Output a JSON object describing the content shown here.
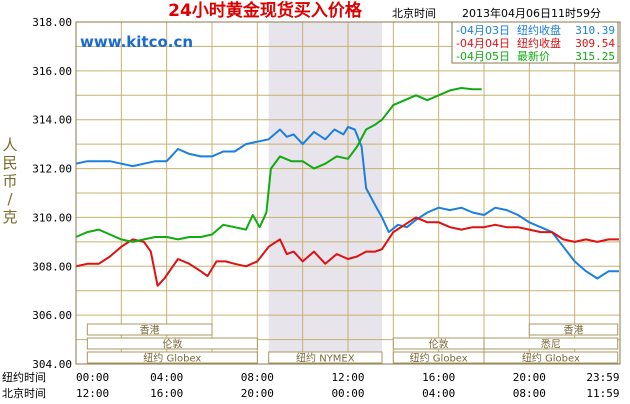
{
  "chart_data": {
    "type": "line",
    "title": "24小时黄金现货买入价格",
    "source": "www.kitco.cn",
    "timestamp_label": "北京时间",
    "timestamp": "2013年04月06日11时59分",
    "ylabel": "人民币/克",
    "ylim": [
      304.0,
      318.0
    ],
    "y_ticks": [
      "318.00",
      "316.00",
      "314.00",
      "312.00",
      "310.00",
      "308.00",
      "306.00",
      "304.00"
    ],
    "x_range_hours": [
      0,
      24
    ],
    "x_row1_label": "纽约时间",
    "x_row1_ticks": [
      "00:00",
      "04:00",
      "08:00",
      "12:00",
      "16:00",
      "20:00",
      "23:59"
    ],
    "x_row2_label": "北京时间",
    "x_row2_ticks": [
      "12:00",
      "16:00",
      "20:00",
      "00:00",
      "04:00",
      "08:00",
      "11:59"
    ],
    "highlight_hours": [
      8.5,
      13.5
    ],
    "grid": true,
    "legend_position": "top-right",
    "legend": [
      {
        "date": "04月03日",
        "label": "纽约收盘",
        "value": "310.39",
        "color": "#1a7fe0"
      },
      {
        "date": "04月04日",
        "label": "纽约收盘",
        "value": "309.54",
        "color": "#dd1111"
      },
      {
        "date": "04月05日",
        "label": "最新价",
        "value": "315.25",
        "color": "#11aa11"
      }
    ],
    "sessions": [
      {
        "name": "香港",
        "start": 0.5,
        "end": 6.0
      },
      {
        "name": "伦敦",
        "start": 0.5,
        "end": 8.0
      },
      {
        "name": "纽约 Globex",
        "start": 0.5,
        "end": 8.0
      },
      {
        "name": "纽约 NYMEX",
        "start": 8.5,
        "end": 13.5
      },
      {
        "name": "纽约 Globex",
        "start": 14.0,
        "end": 18.0
      },
      {
        "name": "伦敦",
        "start": 14.0,
        "end": 18.0
      },
      {
        "name": "悉尼",
        "start": 18.0,
        "end": 23.9
      },
      {
        "name": "香港",
        "start": 20.0,
        "end": 23.9
      },
      {
        "name": "纽约 Globex",
        "start": 18.0,
        "end": 23.9
      }
    ],
    "series": [
      {
        "color": "#1a7fe0",
        "points": [
          [
            0,
            312.2
          ],
          [
            0.5,
            312.3
          ],
          [
            1,
            312.3
          ],
          [
            1.5,
            312.3
          ],
          [
            2,
            312.2
          ],
          [
            2.5,
            312.1
          ],
          [
            3,
            312.2
          ],
          [
            3.5,
            312.3
          ],
          [
            4,
            312.3
          ],
          [
            4.5,
            312.8
          ],
          [
            5,
            312.6
          ],
          [
            5.5,
            312.5
          ],
          [
            6,
            312.5
          ],
          [
            6.5,
            312.7
          ],
          [
            7,
            312.7
          ],
          [
            7.5,
            313.0
          ],
          [
            8,
            313.1
          ],
          [
            8.5,
            313.2
          ],
          [
            9,
            313.6
          ],
          [
            9.3,
            313.3
          ],
          [
            9.6,
            313.4
          ],
          [
            10,
            313.0
          ],
          [
            10.5,
            313.5
          ],
          [
            11,
            313.2
          ],
          [
            11.4,
            313.6
          ],
          [
            11.8,
            313.4
          ],
          [
            12,
            313.7
          ],
          [
            12.3,
            313.6
          ],
          [
            12.6,
            312.9
          ],
          [
            12.8,
            311.2
          ],
          [
            13.2,
            310.5
          ],
          [
            13.5,
            310.0
          ],
          [
            13.8,
            309.4
          ],
          [
            14.2,
            309.7
          ],
          [
            14.6,
            309.6
          ],
          [
            15,
            309.9
          ],
          [
            15.5,
            310.2
          ],
          [
            16,
            310.4
          ],
          [
            16.5,
            310.3
          ],
          [
            17,
            310.4
          ],
          [
            17.5,
            310.2
          ],
          [
            18,
            310.1
          ],
          [
            18.5,
            310.4
          ],
          [
            19,
            310.3
          ],
          [
            19.5,
            310.1
          ],
          [
            20,
            309.8
          ],
          [
            20.5,
            309.6
          ],
          [
            21,
            309.4
          ],
          [
            21.5,
            308.8
          ],
          [
            22,
            308.2
          ],
          [
            22.5,
            307.8
          ],
          [
            23,
            307.5
          ],
          [
            23.5,
            307.8
          ],
          [
            23.95,
            307.8
          ]
        ]
      },
      {
        "color": "#dd1111",
        "points": [
          [
            0,
            308.0
          ],
          [
            0.5,
            308.1
          ],
          [
            1,
            308.1
          ],
          [
            1.5,
            308.4
          ],
          [
            2,
            308.8
          ],
          [
            2.5,
            309.1
          ],
          [
            3,
            309.0
          ],
          [
            3.3,
            308.6
          ],
          [
            3.6,
            307.2
          ],
          [
            3.9,
            307.5
          ],
          [
            4.2,
            307.9
          ],
          [
            4.5,
            308.3
          ],
          [
            5,
            308.1
          ],
          [
            5.5,
            307.8
          ],
          [
            5.8,
            307.6
          ],
          [
            6.2,
            308.2
          ],
          [
            6.6,
            308.2
          ],
          [
            7,
            308.1
          ],
          [
            7.5,
            308.0
          ],
          [
            8,
            308.2
          ],
          [
            8.5,
            308.8
          ],
          [
            9,
            309.1
          ],
          [
            9.3,
            308.5
          ],
          [
            9.6,
            308.6
          ],
          [
            10,
            308.2
          ],
          [
            10.5,
            308.6
          ],
          [
            11,
            308.1
          ],
          [
            11.5,
            308.5
          ],
          [
            12,
            308.3
          ],
          [
            12.4,
            308.4
          ],
          [
            12.8,
            308.6
          ],
          [
            13.2,
            308.6
          ],
          [
            13.5,
            308.7
          ],
          [
            14,
            309.4
          ],
          [
            14.5,
            309.7
          ],
          [
            15,
            310.0
          ],
          [
            15.5,
            309.8
          ],
          [
            16,
            309.8
          ],
          [
            16.5,
            309.6
          ],
          [
            17,
            309.5
          ],
          [
            17.5,
            309.6
          ],
          [
            18,
            309.6
          ],
          [
            18.5,
            309.7
          ],
          [
            19,
            309.6
          ],
          [
            19.5,
            309.6
          ],
          [
            20,
            309.5
          ],
          [
            20.5,
            309.4
          ],
          [
            21,
            309.4
          ],
          [
            21.5,
            309.1
          ],
          [
            22,
            309.0
          ],
          [
            22.5,
            309.1
          ],
          [
            23,
            309.0
          ],
          [
            23.5,
            309.1
          ],
          [
            23.95,
            309.1
          ]
        ]
      },
      {
        "color": "#11aa11",
        "points": [
          [
            0,
            309.2
          ],
          [
            0.5,
            309.4
          ],
          [
            1,
            309.5
          ],
          [
            1.5,
            309.3
          ],
          [
            2,
            309.1
          ],
          [
            2.5,
            309.0
          ],
          [
            3,
            309.1
          ],
          [
            3.5,
            309.2
          ],
          [
            4,
            309.2
          ],
          [
            4.5,
            309.1
          ],
          [
            5,
            309.2
          ],
          [
            5.5,
            309.2
          ],
          [
            6,
            309.3
          ],
          [
            6.5,
            309.7
          ],
          [
            7,
            309.6
          ],
          [
            7.5,
            309.5
          ],
          [
            7.8,
            310.1
          ],
          [
            8.1,
            309.6
          ],
          [
            8.4,
            310.2
          ],
          [
            8.6,
            312.0
          ],
          [
            9,
            312.5
          ],
          [
            9.5,
            312.3
          ],
          [
            10,
            312.3
          ],
          [
            10.5,
            312.0
          ],
          [
            11,
            312.2
          ],
          [
            11.5,
            312.5
          ],
          [
            12,
            312.4
          ],
          [
            12.4,
            312.9
          ],
          [
            12.8,
            313.6
          ],
          [
            13.2,
            313.8
          ],
          [
            13.5,
            314.0
          ],
          [
            14,
            314.6
          ],
          [
            14.5,
            314.8
          ],
          [
            15,
            315.0
          ],
          [
            15.5,
            314.8
          ],
          [
            16,
            315.0
          ],
          [
            16.5,
            315.2
          ],
          [
            17,
            315.3
          ],
          [
            17.5,
            315.25
          ],
          [
            17.9,
            315.25
          ]
        ]
      }
    ]
  }
}
